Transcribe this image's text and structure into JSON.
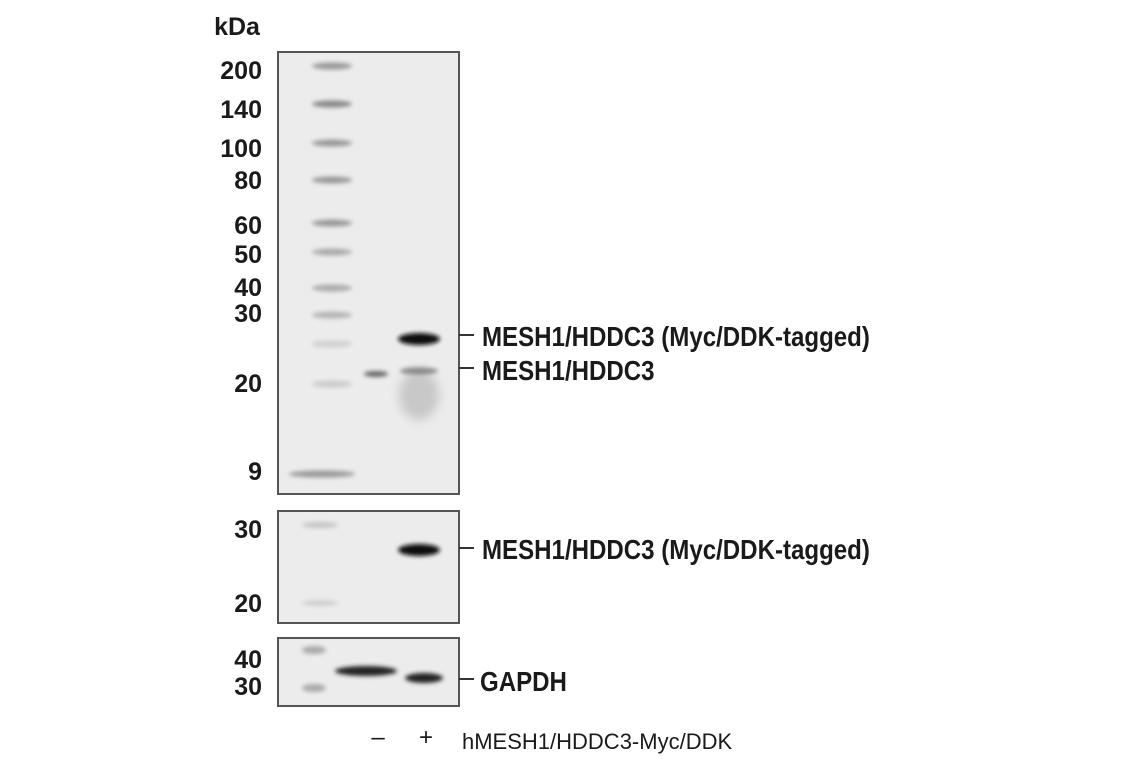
{
  "unit_label": "kDa",
  "panels": [
    {
      "markers": [
        "200",
        "140",
        "100",
        "80",
        "60",
        "50",
        "40",
        "30",
        "20",
        "9"
      ],
      "band_labels": [
        "MESH1/HDDC3 (Myc/DDK-tagged)",
        "MESH1/HDDC3"
      ]
    },
    {
      "markers": [
        "30",
        "20"
      ],
      "band_labels": [
        "MESH1/HDDC3 (Myc/DDK-tagged)"
      ]
    },
    {
      "markers": [
        "40",
        "30"
      ],
      "band_labels": [
        "GAPDH"
      ]
    }
  ],
  "lanes": [
    "–",
    "+"
  ],
  "sample_label": "hMESH1/HDDC3-Myc/DDK"
}
